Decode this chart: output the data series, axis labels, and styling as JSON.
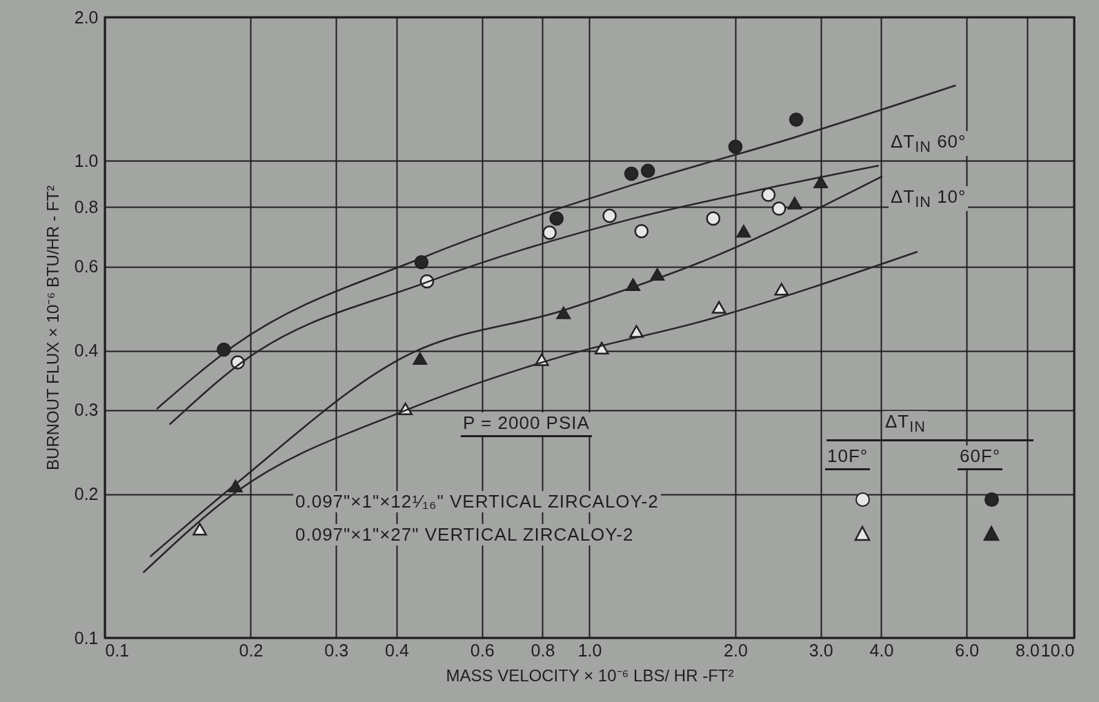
{
  "chart_data": {
    "type": "scatter",
    "xlabel": "MASS VELOCITY × 10⁻⁶  LBS/ HR -FT²",
    "ylabel": "BURNOUT FLUX × 10⁻⁶  BTU/HR - FT²",
    "log": "xy",
    "grid": true,
    "xlim": [
      0.1,
      10
    ],
    "ylim": [
      0.1,
      2.0
    ],
    "xticks": [
      0.1,
      0.2,
      0.3,
      0.4,
      0.6,
      0.8,
      {
        "value": 1,
        "label": "1.0"
      },
      {
        "value": 2,
        "label": "2.0"
      },
      {
        "value": 3,
        "label": "3.0"
      },
      {
        "value": 4,
        "label": "4.0"
      },
      {
        "value": 6,
        "label": "6.0"
      },
      {
        "value": 8,
        "label": "8.0"
      },
      {
        "value": 10,
        "label": "10.0"
      }
    ],
    "yticks": [
      0.1,
      0.2,
      0.3,
      0.4,
      0.6,
      0.8,
      {
        "value": 1,
        "label": "1.0"
      },
      {
        "value": 2,
        "label": "2.0"
      }
    ],
    "series": [
      {
        "type": "scatter",
        "marker": "circle",
        "color": "#e6e6e6",
        "x": [
          0.188,
          0.462,
          0.827,
          1.1,
          1.28,
          1.8,
          2.34,
          2.46
        ],
        "values": [
          0.378,
          0.559,
          0.707,
          0.767,
          0.712,
          0.757,
          0.849,
          0.794
        ]
      },
      {
        "type": "scatter",
        "marker": "circle",
        "color": "#262626",
        "x": [
          0.176,
          0.45,
          0.855,
          1.22,
          1.32,
          2.0,
          2.67
        ],
        "values": [
          0.402,
          0.613,
          0.757,
          0.94,
          0.953,
          1.07,
          1.22
        ]
      },
      {
        "type": "scatter",
        "marker": "triangle",
        "color": "#e6e6e6",
        "x": [
          0.157,
          0.417,
          0.797,
          1.06,
          1.25,
          1.85,
          2.49
        ],
        "values": [
          0.169,
          0.302,
          0.383,
          0.405,
          0.439,
          0.493,
          0.538
        ]
      },
      {
        "type": "scatter",
        "marker": "triangle",
        "color": "#262626",
        "x": [
          0.186,
          0.447,
          0.884,
          1.23,
          1.38,
          2.08,
          2.65,
          3.0
        ],
        "values": [
          0.208,
          0.385,
          0.48,
          0.55,
          0.578,
          0.712,
          0.815,
          0.903
        ]
      },
      {
        "type": "line",
        "color": "#262626",
        "x": [
          0.128,
          0.185,
          0.455,
          1.23,
          2.65,
          5.7
        ],
        "values": [
          0.302,
          0.41,
          0.628,
          0.891,
          1.12,
          1.44
        ]
      },
      {
        "type": "line",
        "color": "#262626",
        "x": [
          0.136,
          0.191,
          0.462,
          1.23,
          2.4,
          3.95
        ],
        "values": [
          0.28,
          0.377,
          0.557,
          0.757,
          0.882,
          0.977
        ]
      },
      {
        "type": "line",
        "color": "#262626",
        "x": [
          0.124,
          0.185,
          0.418,
          0.884,
          1.72,
          4.02
        ],
        "values": [
          0.148,
          0.209,
          0.39,
          0.486,
          0.617,
          0.928
        ]
      },
      {
        "type": "line",
        "color": "#262626",
        "x": [
          0.12,
          0.185,
          0.418,
          0.884,
          1.72,
          4.75
        ],
        "values": [
          0.137,
          0.201,
          0.3,
          0.39,
          0.462,
          0.645
        ]
      }
    ],
    "annotations": [
      "ΔT$_{IN}$ 60°",
      "ΔT$_{IN}$ 10°",
      "P = 2000 PSIA",
      "ΔT$_{IN}$",
      "10F°",
      "60F°",
      "0.097\"×1\"×12¹⁄₁₆\" VERTICAL ZIRCALOY-2",
      "0.097\"×1\"×27\" VERTICAL ZIRCALOY-2"
    ]
  }
}
